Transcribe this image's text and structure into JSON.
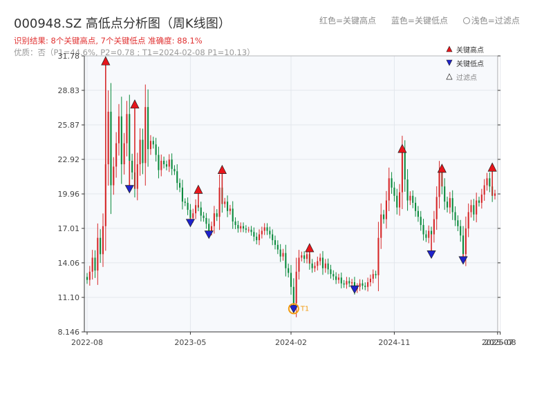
{
  "header": {
    "title": "000948.SZ 高低点分析图（周K线图）",
    "subtitle": "识别结果: 8个关键高点, 7个关键低点  准确度: 88.1%",
    "quality": "优质：否（P1=44.6%, P2=0.78 ; T1=2024-02-08 P1=10.13）"
  },
  "top_legend": {
    "red": "红色=关键高点",
    "blue": "蓝色=关键低点",
    "light": "浅色=过滤点"
  },
  "colors": {
    "up": "#d62728",
    "down": "#0a8a3c",
    "high_marker": "#e8151b",
    "low_marker": "#1e22cc",
    "t1": "#f39c12",
    "plot_bg": "#f7f9fc",
    "grid": "#e3e6ec"
  },
  "chart_data": {
    "type": "candlestick",
    "title": "000948.SZ 高低点分析图（周K线图）",
    "y_ticks": [
      "8.146",
      "11.10",
      "14.06",
      "17.01",
      "19.96",
      "22.92",
      "25.87",
      "28.83",
      "31.78"
    ],
    "ylim": [
      8.146,
      31.78
    ],
    "x_ticks": [
      "2022-08",
      "2023-05",
      "2024-02",
      "2024-11",
      "2025-07",
      "2025-08"
    ],
    "x_tick_pos": [
      0,
      39,
      77,
      116,
      155,
      156
    ],
    "grid": true,
    "legend": {
      "position": "top-right",
      "items": [
        "关键高点",
        "关键低点",
        "过滤点"
      ]
    },
    "closes": [
      12.6,
      13.3,
      14.5,
      13.4,
      16.2,
      14.8,
      17.2,
      22.5,
      27.0,
      20.7,
      22.3,
      24.3,
      26.6,
      22.5,
      24.3,
      26.8,
      22.8,
      21.8,
      20.4,
      22.5,
      24.6,
      22.6,
      27.4,
      23.8,
      24.5,
      24.2,
      23.3,
      22.0,
      22.8,
      22.5,
      22.3,
      22.9,
      22.1,
      21.9,
      20.9,
      20.5,
      19.3,
      19.2,
      18.6,
      17.9,
      18.3,
      19.0,
      18.8,
      18.1,
      17.9,
      17.4,
      16.8,
      17.2,
      18.3,
      18.0,
      20.5,
      19.1,
      19.3,
      18.5,
      18.7,
      17.6,
      17.3,
      17.0,
      17.2,
      17.0,
      16.9,
      16.9,
      16.7,
      16.3,
      16.0,
      16.5,
      16.8,
      17.1,
      16.8,
      16.5,
      16.0,
      15.6,
      15.2,
      14.6,
      14.9,
      13.6,
      13.2,
      12.0,
      10.6,
      13.3,
      14.5,
      14.7,
      14.4,
      14.8,
      14.0,
      13.6,
      13.8,
      14.2,
      14.5,
      13.6,
      14.0,
      13.5,
      13.1,
      12.9,
      12.6,
      12.8,
      12.3,
      12.2,
      12.5,
      12.3,
      12.4,
      11.8,
      12.0,
      12.3,
      12.1,
      12.0,
      12.4,
      12.7,
      13.1,
      13.0,
      16.2,
      18.2,
      17.8,
      19.4,
      21.3,
      20.5,
      19.8,
      18.8,
      20.1,
      23.5,
      21.2,
      19.4,
      19.8,
      19.2,
      18.5,
      18.0,
      17.3,
      16.5,
      16.2,
      16.8,
      16.5,
      17.8,
      19.7,
      21.8,
      20.6,
      19.3,
      18.8,
      19.6,
      18.4,
      17.7,
      17.2,
      16.4,
      14.8,
      17.0,
      18.4,
      19.0,
      18.2,
      19.4,
      19.2,
      19.9,
      20.7,
      21.3,
      20.6,
      19.8,
      20.0
    ],
    "key_highs": [
      {
        "index": 7,
        "value": 31.0
      },
      {
        "index": 18,
        "value": 27.3
      },
      {
        "index": 42,
        "value": 20.0
      },
      {
        "index": 51,
        "value": 21.7
      },
      {
        "index": 84,
        "value": 15.0
      },
      {
        "index": 119,
        "value": 23.5
      },
      {
        "index": 134,
        "value": 21.8
      },
      {
        "index": 153,
        "value": 21.9
      }
    ],
    "key_lows": [
      {
        "index": 16,
        "value": 20.4
      },
      {
        "index": 39,
        "value": 17.5
      },
      {
        "index": 46,
        "value": 16.5
      },
      {
        "index": 78,
        "value": 10.13
      },
      {
        "index": 101,
        "value": 11.8
      },
      {
        "index": 130,
        "value": 14.8
      },
      {
        "index": 142,
        "value": 14.3
      }
    ],
    "t1": {
      "label": "T1",
      "index": 78,
      "value": 10.13,
      "date": "2024-02-08"
    }
  }
}
